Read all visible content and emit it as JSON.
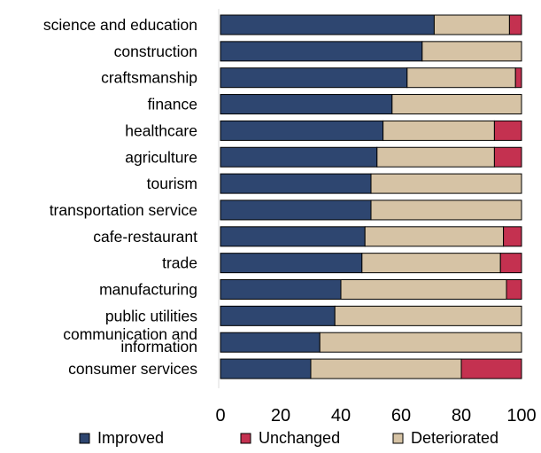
{
  "chart_data": {
    "type": "bar",
    "orientation": "horizontal",
    "stacked": true,
    "title": "",
    "xlabel": "",
    "ylabel": "",
    "xlim": [
      0,
      100
    ],
    "xticks": [
      0,
      20,
      40,
      60,
      80,
      100
    ],
    "grid": false,
    "legend_position": "bottom",
    "categories": [
      [
        "science and education"
      ],
      [
        "construction"
      ],
      [
        "craftsmanship"
      ],
      [
        "finance"
      ],
      [
        "healthcare"
      ],
      [
        "agriculture"
      ],
      [
        "tourism"
      ],
      [
        "transportation service"
      ],
      [
        "cafe-restaurant"
      ],
      [
        "trade"
      ],
      [
        "manufacturing"
      ],
      [
        "public utilities"
      ],
      [
        "communication and",
        "information"
      ],
      [
        "consumer services"
      ]
    ],
    "series": [
      {
        "name": "Improved",
        "color": "#2e4670",
        "values": [
          71,
          67,
          62,
          57,
          54,
          52,
          50,
          50,
          48,
          47,
          40,
          38,
          33,
          30
        ]
      },
      {
        "name": "Unchanged",
        "color": "#c43150",
        "values": [
          4,
          0,
          2,
          0,
          9,
          9,
          0,
          0,
          6,
          7,
          5,
          0,
          0,
          20
        ]
      },
      {
        "name": "Deteriorated",
        "color": "#d6c3a5",
        "values": [
          25,
          33,
          36,
          43,
          37,
          39,
          50,
          50,
          46,
          46,
          55,
          62,
          67,
          50
        ]
      }
    ],
    "stack_order": [
      "Improved",
      "Deteriorated",
      "Unchanged"
    ]
  }
}
